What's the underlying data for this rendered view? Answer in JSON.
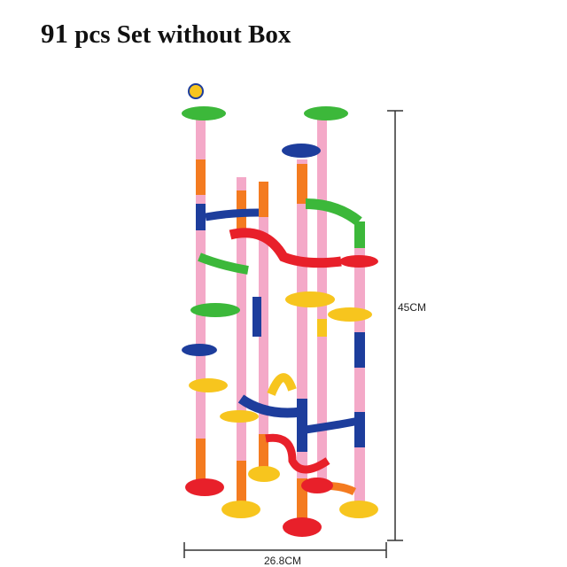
{
  "title": {
    "count": "91",
    "text": "pcs Set without Box"
  },
  "dimensions": {
    "height": "45CM",
    "width": "26.8CM"
  },
  "colors": {
    "red": "#e8202a",
    "yellow": "#f7c51e",
    "green": "#3cb83a",
    "blue": "#1d3d9c",
    "pink": "#f4a9c8",
    "orange": "#f47b20"
  }
}
